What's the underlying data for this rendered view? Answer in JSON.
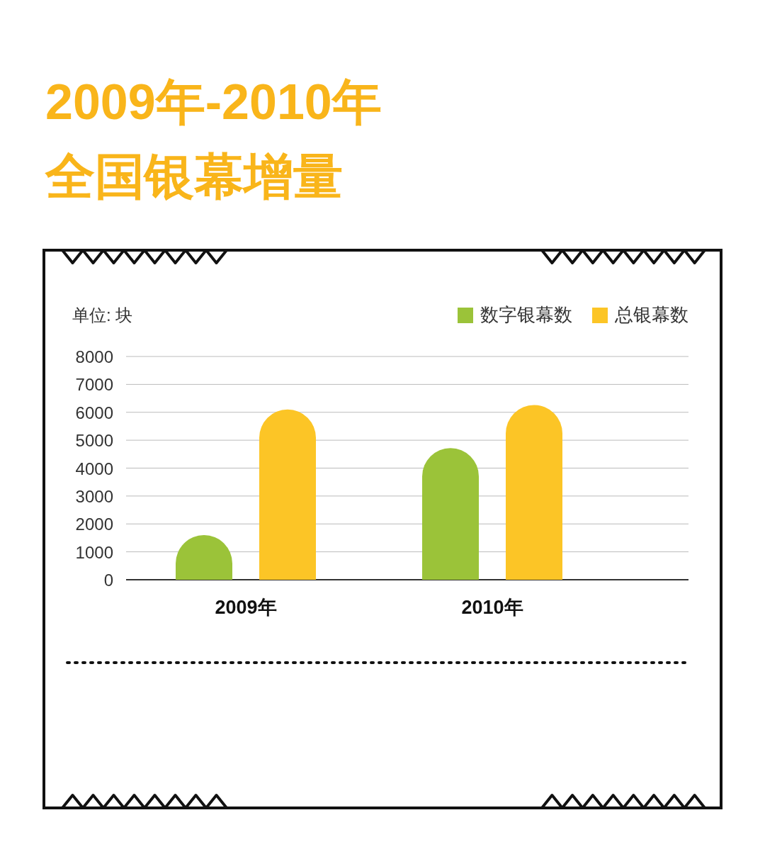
{
  "chart_data": {
    "type": "bar",
    "title": "2009年-2010年",
    "subtitle": "全国银幕增量",
    "ylabel": "单位: 块",
    "categories": [
      "2009年",
      "2010年"
    ],
    "series": [
      {
        "name": "数字银幕数",
        "color": "#9bc339",
        "values": [
          1600,
          4720
        ]
      },
      {
        "name": "总银幕数",
        "color": "#fcc526",
        "values": [
          6100,
          6260
        ]
      }
    ],
    "ylim": [
      0,
      8000
    ],
    "yticks": [
      0,
      1000,
      2000,
      3000,
      4000,
      5000,
      6000,
      7000,
      8000
    ],
    "grid": "y",
    "legend": "top right"
  }
}
